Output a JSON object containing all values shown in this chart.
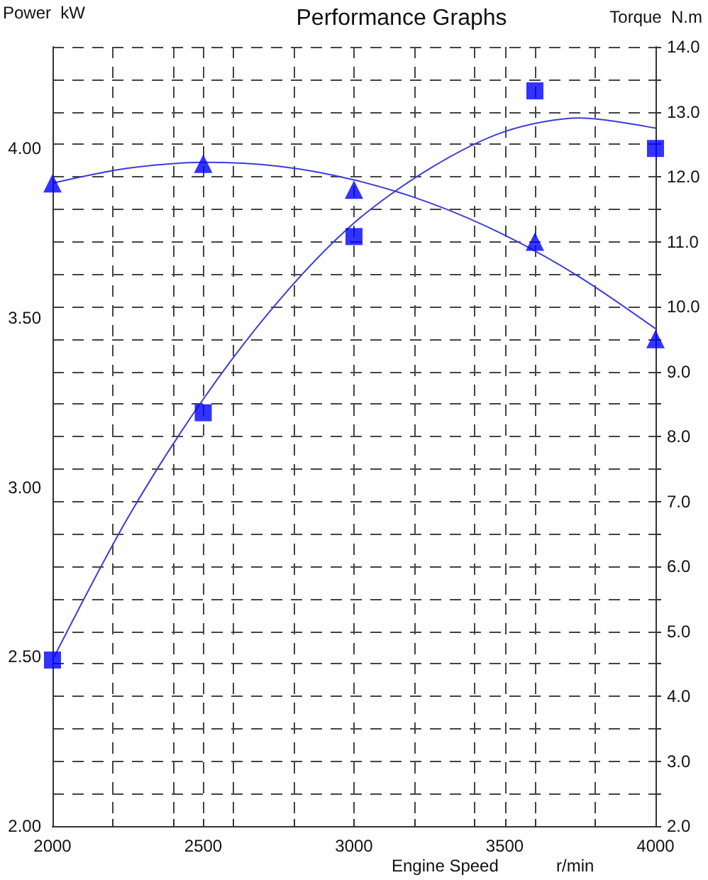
{
  "chart_data": {
    "type": "scatter",
    "title": "Performance Graphs",
    "xlabel": "Engine Speed",
    "ylabel": "Power  kW",
    "y2label": "Torque  N.m",
    "annotations": [
      "r/min"
    ],
    "series": [
      {
        "type": "line",
        "color": "#3c3cd8",
        "marker": "none",
        "x": [
          2000,
          2250,
          2500,
          2750,
          3000,
          3250,
          3500,
          3750,
          4000
        ],
        "values": [
          2.49,
          2.91,
          3.26,
          3.55,
          3.78,
          3.94,
          4.05,
          4.09,
          4.06
        ]
      },
      {
        "type": "line",
        "axis": "y2",
        "color": "#3c3cd8",
        "marker": "none",
        "x": [
          2000,
          2250,
          2500,
          2750,
          3000,
          3250,
          3500,
          3750,
          4000
        ],
        "values": [
          11.9,
          12.13,
          12.22,
          12.16,
          11.95,
          11.6,
          11.1,
          10.45,
          9.66
        ]
      },
      {
        "color": "#0000ff",
        "marker": "square",
        "x": [
          2000,
          2500,
          3000,
          3600,
          4000
        ],
        "values": [
          2.49,
          3.22,
          3.74,
          4.17,
          4.0
        ]
      },
      {
        "axis": "y2",
        "color": "#0000ff",
        "marker": "triangle",
        "x": [
          2000,
          2500,
          3000,
          3600,
          4000
        ],
        "values": [
          11.9,
          12.2,
          11.8,
          11.0,
          9.5
        ]
      }
    ],
    "xlim": [
      2000,
      4000
    ],
    "xticks": [
      2000,
      {
        "value": 2200,
        "label": null
      },
      {
        "value": 2400,
        "label": null
      },
      2500,
      {
        "value": 2600,
        "label": null
      },
      {
        "value": 2800,
        "label": null
      },
      3000,
      {
        "value": 3200,
        "label": null
      },
      {
        "value": 3400,
        "label": null
      },
      3500,
      {
        "value": 3600,
        "label": null
      },
      {
        "value": 3800,
        "label": null
      },
      4000
    ],
    "ylim": [
      2,
      4.3
    ],
    "yticks": [
      {
        "value": 2,
        "label": "2.00"
      },
      {
        "value": 2.5,
        "label": "2.50"
      },
      {
        "value": 3,
        "label": "3.00"
      },
      {
        "value": 3.5,
        "label": "3.50"
      },
      {
        "value": 4,
        "label": "4.00"
      }
    ],
    "y2lim": [
      2,
      14
    ],
    "y2ticks": [
      {
        "value": 2,
        "label": "2.0"
      },
      {
        "value": 2.5,
        "label": null
      },
      {
        "value": 3,
        "label": "3.0"
      },
      {
        "value": 3.5,
        "label": null
      },
      {
        "value": 4,
        "label": "4.0"
      },
      {
        "value": 4.5,
        "label": null
      },
      {
        "value": 5,
        "label": "5.0"
      },
      {
        "value": 5.5,
        "label": null
      },
      {
        "value": 6,
        "label": "6.0"
      },
      {
        "value": 6.5,
        "label": null
      },
      {
        "value": 7,
        "label": "7.0"
      },
      {
        "value": 7.5,
        "label": null
      },
      {
        "value": 8,
        "label": "8.0"
      },
      {
        "value": 8.5,
        "label": null
      },
      {
        "value": 9,
        "label": "9.0"
      },
      {
        "value": 9.5,
        "label": null
      },
      {
        "value": 10,
        "label": "10.0"
      },
      {
        "value": 10.5,
        "label": null
      },
      {
        "value": 11,
        "label": "11.0"
      },
      {
        "value": 11.5,
        "label": null
      },
      {
        "value": 12,
        "label": "12.0"
      },
      {
        "value": 12.5,
        "label": null
      },
      {
        "value": 13,
        "label": "13.0"
      },
      {
        "value": 13.5,
        "label": null
      },
      {
        "value": 14,
        "label": "14.0"
      }
    ],
    "grid": true
  }
}
